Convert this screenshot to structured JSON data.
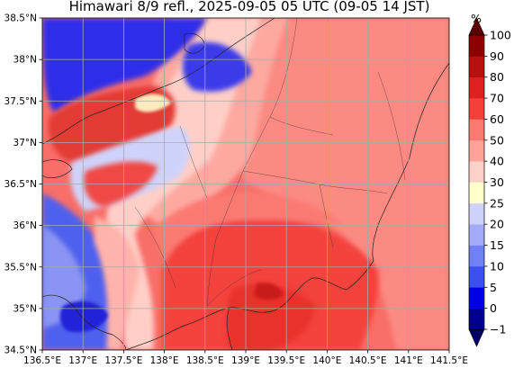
{
  "title": "Himawari 8/9 refl., 2025-09-05 05 UTC (09-05 14 JST)",
  "map": {
    "lon_range": [
      136.5,
      141.5
    ],
    "lat_range": [
      34.5,
      38.5
    ],
    "lon_ticks": [
      "136.5°E",
      "137°E",
      "137.5°E",
      "138°E",
      "138.5°E",
      "139°E",
      "139.5°E",
      "140°E",
      "140.5°E",
      "141°E",
      "141.5°E"
    ],
    "lat_ticks": [
      "34.5°N",
      "35°N",
      "35.5°N",
      "36°N",
      "36.5°N",
      "37°N",
      "37.5°N",
      "38°N",
      "38.5°N"
    ],
    "grid": true,
    "gridline_color": "#a9a9a9"
  },
  "colorbar": {
    "unit": "%",
    "labels": [
      "-1",
      "0",
      "5",
      "10",
      "15",
      "20",
      "25",
      "30",
      "40",
      "50",
      "60",
      "70",
      "80",
      "90",
      "100"
    ],
    "colors": [
      "#00008c",
      "#0000e6",
      "#3c50f0",
      "#7080f5",
      "#a3aaf7",
      "#cfd3fb",
      "#ffffcc",
      "#ffd0c8",
      "#ffa39a",
      "#fa7a72",
      "#f5403a",
      "#e02020",
      "#b80f0f",
      "#8c0000"
    ],
    "extend_min_color": "#000064",
    "extend_max_color": "#5a0000"
  }
}
